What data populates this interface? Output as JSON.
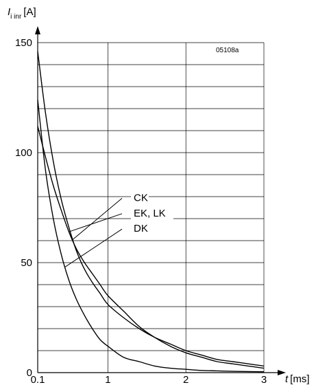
{
  "chart_data": {
    "type": "line",
    "figure_id": "05108a",
    "ylabel_main": "I",
    "ylabel_sub": "i inr",
    "ylabel_unit": "[A]",
    "xlabel_main": "t",
    "xlabel_unit": "[ms]",
    "xlim": [
      0.1,
      3
    ],
    "ylim": [
      0,
      150
    ],
    "x_ticks": [
      {
        "value": 0.1,
        "label": "0.1"
      },
      {
        "value": 1,
        "label": "1"
      },
      {
        "value": 2,
        "label": "2"
      },
      {
        "value": 3,
        "label": "3"
      }
    ],
    "y_ticks": [
      {
        "value": 0,
        "label": "0"
      },
      {
        "value": 50,
        "label": "50"
      },
      {
        "value": 100,
        "label": "100"
      },
      {
        "value": 150,
        "label": "150"
      }
    ],
    "y_grid_step": 10,
    "x_grid_values": [
      1,
      2,
      3
    ],
    "grid": true,
    "series": [
      {
        "name": "CK",
        "x": [
          0.1,
          0.2,
          0.3,
          0.4,
          0.5,
          0.6,
          0.7,
          0.8,
          0.9,
          1.0,
          1.2,
          1.4,
          1.6,
          1.8,
          2.0,
          2.2,
          2.4,
          2.6,
          2.8,
          3.0
        ],
        "values": [
          146,
          118,
          96,
          79,
          66,
          55,
          47,
          41,
          36,
          31,
          25,
          20,
          16,
          13,
          10,
          8,
          6,
          5,
          4,
          3
        ]
      },
      {
        "name": "EK, LK",
        "x": [
          0.1,
          0.2,
          0.3,
          0.4,
          0.5,
          0.6,
          0.7,
          0.8,
          0.9,
          1.0,
          1.2,
          1.4,
          1.6,
          1.8,
          2.0,
          2.2,
          2.4,
          2.6,
          2.8,
          3.0
        ],
        "values": [
          112,
          98,
          85,
          74,
          64,
          56,
          50,
          45,
          40,
          35,
          28,
          21,
          16,
          12,
          9,
          7,
          5,
          4,
          3,
          2
        ]
      },
      {
        "name": "DK",
        "x": [
          0.1,
          0.2,
          0.3,
          0.4,
          0.5,
          0.6,
          0.7,
          0.8,
          0.9,
          1.0,
          1.2,
          1.4,
          1.6,
          1.8,
          2.0,
          2.2,
          2.4,
          2.6,
          2.8,
          3.0
        ],
        "values": [
          124,
          92,
          70,
          54,
          42,
          33,
          26,
          20,
          15,
          12,
          7,
          5,
          3,
          2,
          1.5,
          1,
          0.8,
          0.6,
          0.5,
          0.4
        ]
      }
    ],
    "annotations": [
      {
        "text": "CK",
        "series": "CK",
        "anchor_x": 0.55,
        "text_y": 78
      },
      {
        "text": "EK, LK",
        "series": "EK, LK",
        "anchor_x": 0.5,
        "text_y": 71
      },
      {
        "text": "DK",
        "series": "DK",
        "anchor_x": 0.45,
        "text_y": 64
      }
    ]
  }
}
